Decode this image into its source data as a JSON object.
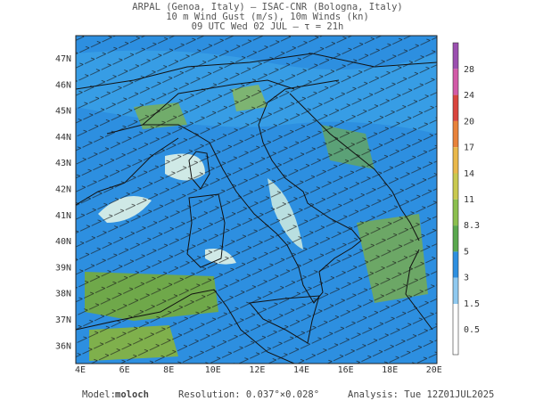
{
  "header": {
    "line1": "ARPAL (Genoa, Italy)  —  ISAC-CNR (Bologna, Italy)",
    "line2": "10 m Wind Gust (m/s), 10m Winds (kn)",
    "line3": "09 UTC Wed 02 JUL  —  τ = 21h"
  },
  "map": {
    "lat_labels": [
      "47N",
      "46N",
      "45N",
      "44N",
      "43N",
      "42N",
      "41N",
      "40N",
      "39N",
      "38N",
      "37N",
      "36N"
    ],
    "lon_labels": [
      "4E",
      "6E",
      "8E",
      "10E",
      "12E",
      "14E",
      "16E",
      "18E",
      "20E"
    ]
  },
  "colorbar": {
    "labels": [
      "28",
      "24",
      "20",
      "17",
      "14",
      "11",
      "8.3",
      "5",
      "3",
      "1.5",
      "0.5"
    ]
  },
  "footer": {
    "model_label": "Model:",
    "model_name": "moloch",
    "resolution": "Resolution: 0.037°×0.028°",
    "analysis": "Analysis: Tue 12Z01JUL2025"
  }
}
